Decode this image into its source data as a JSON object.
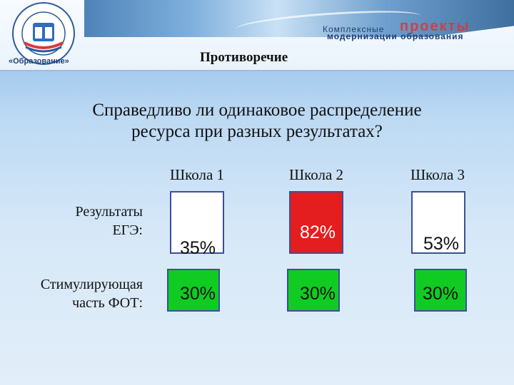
{
  "header": {
    "title": "Противоречие",
    "logo_ring_text": "ПРИОРИТЕТНЫЕ НАЦИОНАЛЬНЫЕ ПРОЕКТЫ",
    "logo_caption": "«Образование»",
    "brand_top": "Комплексные",
    "brand_big": "проекты",
    "brand_sub": "модернизации образования"
  },
  "question": {
    "line1": "Справедливо ли одинаковое распределение",
    "line2": "ресурса при разных результатах?"
  },
  "columns": [
    "Школа 1",
    "Школа 2",
    "Школа 3"
  ],
  "rows": {
    "ege_label_line1": "Результаты",
    "ege_label_line2": "ЕГЭ:",
    "fot_label_line1": "Стимулирующая",
    "fot_label_line2": "часть ФОТ:"
  },
  "ege": [
    {
      "label": "35%",
      "fill_fraction": 0.0
    },
    {
      "label": "82%",
      "fill_fraction": 1.0
    },
    {
      "label": "53%",
      "fill_fraction": 0.0
    }
  ],
  "fot": [
    "30%",
    "30%",
    "30%"
  ],
  "colors": {
    "ege_fill": "#e41e1e",
    "fot_fill": "#10cc22",
    "box_border": "#3d4f9a"
  }
}
